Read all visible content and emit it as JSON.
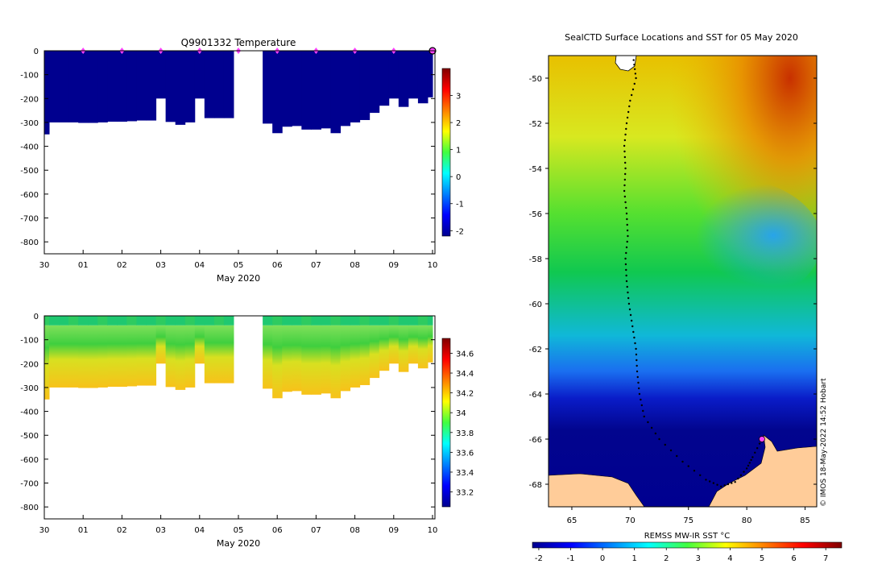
{
  "chart_data": [
    {
      "id": "temperature",
      "type": "heatmap",
      "title": "Q9901332  Temperature",
      "xlabel": "May 2020",
      "x_tick_labels": [
        "30",
        "01",
        "02",
        "03",
        "04",
        "05",
        "06",
        "07",
        "08",
        "09",
        "10"
      ],
      "ylim": [
        -850,
        0
      ],
      "y_ticks": [
        0,
        -100,
        -200,
        -300,
        -400,
        -500,
        -600,
        -700,
        -800
      ],
      "profile_day_offsets": [
        0,
        0.25,
        0.5,
        0.75,
        1,
        1.25,
        1.5,
        1.75,
        2,
        2.25,
        2.5,
        2.75,
        3,
        3.25,
        3.5,
        3.75,
        4,
        4.25,
        4.5,
        4.75,
        5,
        5.25,
        5.5,
        5.75,
        6,
        6.25,
        6.5,
        6.75,
        7,
        7.25,
        7.5,
        7.75,
        8,
        8.25,
        8.5,
        8.75,
        9,
        9.25,
        9.5,
        9.75,
        10
      ],
      "profile_depths_m": [
        350,
        300,
        300,
        300,
        302,
        302,
        300,
        297,
        297,
        295,
        292,
        292,
        200,
        298,
        310,
        300,
        200,
        282,
        282,
        282,
        null,
        null,
        null,
        305,
        345,
        318,
        315,
        330,
        330,
        325,
        345,
        315,
        300,
        290,
        260,
        230,
        200,
        235,
        200,
        220,
        195
      ],
      "surface_marker_day_offsets": [
        1,
        2,
        3,
        4,
        5,
        6,
        7,
        8,
        9,
        10
      ],
      "colorbar": {
        "min": -2.2,
        "max": 4,
        "ticks": [
          3,
          2,
          1,
          0,
          -1,
          -2
        ],
        "tick_labels": [
          "3",
          "2",
          "1",
          "0",
          "-1",
          "-2"
        ]
      }
    },
    {
      "id": "salinity",
      "type": "heatmap",
      "title": "",
      "xlabel": "May 2020",
      "x_tick_labels": [
        "30",
        "01",
        "02",
        "03",
        "04",
        "05",
        "06",
        "07",
        "08",
        "09",
        "10"
      ],
      "ylim": [
        -850,
        0
      ],
      "y_ticks": [
        0,
        -100,
        -200,
        -300,
        -400,
        -500,
        -600,
        -700,
        -800
      ],
      "mixed_layer_depth_m": 40,
      "colorbar": {
        "min": 33.05,
        "max": 34.75,
        "ticks": [
          34.6,
          34.4,
          34.2,
          34.0,
          33.8,
          33.6,
          33.4,
          33.2
        ],
        "tick_labels": [
          "34.6",
          "34.4",
          "34.2",
          "34",
          "33.8",
          "33.6",
          "33.4",
          "33.2"
        ]
      }
    },
    {
      "id": "sst_map",
      "type": "heatmap",
      "title": "SealCTD Surface Locations and SST for 05 May 2020",
      "x_tick_labels": [
        "65",
        "70",
        "75",
        "80",
        "85"
      ],
      "x_ticks": [
        65,
        70,
        75,
        80,
        85
      ],
      "xlim": [
        63,
        86
      ],
      "y_tick_labels": [
        "-50",
        "-52",
        "-54",
        "-56",
        "-58",
        "-60",
        "-62",
        "-64",
        "-66",
        "-68"
      ],
      "y_ticks": [
        -50,
        -52,
        -54,
        -56,
        -58,
        -60,
        -62,
        -64,
        -66,
        -68
      ],
      "ylim": [
        -69,
        -49
      ],
      "track": [
        [
          70.3,
          -49.2
        ],
        [
          70.5,
          -50
        ],
        [
          70.0,
          -51
        ],
        [
          69.7,
          -52
        ],
        [
          69.5,
          -53
        ],
        [
          69.6,
          -54
        ],
        [
          69.5,
          -55
        ],
        [
          69.7,
          -56
        ],
        [
          69.8,
          -57
        ],
        [
          69.6,
          -58
        ],
        [
          69.7,
          -59
        ],
        [
          69.9,
          -60
        ],
        [
          70.2,
          -61
        ],
        [
          70.5,
          -62
        ],
        [
          70.6,
          -63
        ],
        [
          70.8,
          -64
        ],
        [
          71.2,
          -65
        ],
        [
          72.5,
          -66
        ],
        [
          74.5,
          -67
        ],
        [
          76.5,
          -67.8
        ],
        [
          77.8,
          -68.1
        ],
        [
          79.0,
          -67.9
        ],
        [
          80.0,
          -67.3
        ],
        [
          80.5,
          -66.8
        ],
        [
          81.3,
          -66.0
        ]
      ],
      "latest_position": [
        81.3,
        -66.0
      ],
      "colorbar_label": "REMSS MW-IR SST °C",
      "colorbar": {
        "min": -2.2,
        "max": 7.5,
        "ticks": [
          -2,
          -1,
          0,
          1,
          2,
          3,
          4,
          5,
          6,
          7
        ],
        "tick_labels": [
          "-2",
          "-1",
          "0",
          "1",
          "2",
          "3",
          "4",
          "5",
          "6",
          "7"
        ]
      }
    }
  ],
  "credit": "© IMOS 18-May-2022 14:52 Hobart"
}
